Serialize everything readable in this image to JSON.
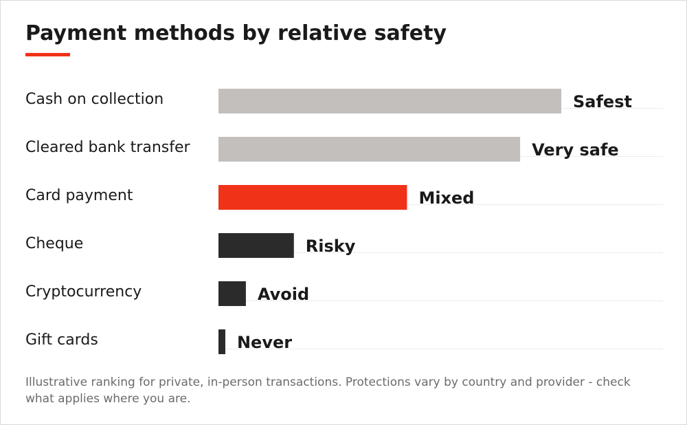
{
  "title": "Payment methods by relative safety",
  "footnote": "Illustrative ranking for private, in-person transactions. Protections vary by country and provider - check what applies where you are.",
  "colors": {
    "accent": "#f03218",
    "safe": "#c2bfbc",
    "mixed": "#f03218",
    "risky": "#2b2b2b",
    "category_text": "#1a1a1a",
    "value_label_text": "#1a1a1a",
    "guide_line": "#ececec"
  },
  "chart_data": {
    "type": "bar",
    "orientation": "horizontal",
    "categories": [
      "Cash on collection",
      "Cleared bank transfer",
      "Card payment",
      "Cheque",
      "Cryptocurrency",
      "Gift cards"
    ],
    "values": [
      100,
      88,
      55,
      22,
      8,
      2
    ],
    "value_labels": [
      "Safest",
      "Very safe",
      "Mixed",
      "Risky",
      "Avoid",
      "Never"
    ],
    "bar_colors": [
      "safe",
      "safe",
      "mixed",
      "risky",
      "risky",
      "risky"
    ],
    "xlim": [
      0,
      100
    ],
    "grid": false,
    "legend": "none",
    "value_axis_shown": false
  }
}
